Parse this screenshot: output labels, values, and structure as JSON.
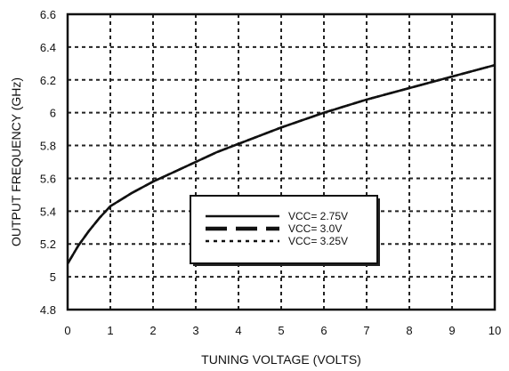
{
  "chart_data": {
    "type": "line",
    "xlabel": "TUNING VOLTAGE (VOLTS)",
    "ylabel": "OUTPUT FREQUENCY (GHz)",
    "xlim": [
      0,
      10
    ],
    "ylim": [
      4.8,
      6.6
    ],
    "x_ticks": [
      "0",
      "1",
      "2",
      "3",
      "4",
      "5",
      "6",
      "7",
      "8",
      "9",
      "10"
    ],
    "y_ticks": [
      "4.8",
      "5",
      "5.2",
      "5.4",
      "5.6",
      "5.8",
      "6",
      "6.2",
      "6.4",
      "6.6"
    ],
    "grid": true,
    "legend_position": "lower-right",
    "series": [
      {
        "name": "VCC= 2.75V",
        "style": "solid",
        "x": [
          0,
          0.25,
          0.5,
          0.75,
          1,
          1.5,
          2,
          2.5,
          3,
          3.5,
          4,
          5,
          6,
          7,
          8,
          9,
          10
        ],
        "y": [
          5.08,
          5.19,
          5.28,
          5.36,
          5.43,
          5.51,
          5.58,
          5.64,
          5.7,
          5.76,
          5.81,
          5.91,
          6.0,
          6.08,
          6.15,
          6.22,
          6.29
        ]
      },
      {
        "name": "VCC= 3.0V",
        "style": "dashed",
        "x": [
          0,
          0.25,
          0.5,
          0.75,
          1,
          1.5,
          2,
          2.5,
          3,
          3.5,
          4,
          5,
          6,
          7,
          8,
          9,
          10
        ],
        "y": [
          5.08,
          5.19,
          5.28,
          5.36,
          5.43,
          5.51,
          5.58,
          5.64,
          5.7,
          5.76,
          5.81,
          5.91,
          6.0,
          6.08,
          6.15,
          6.22,
          6.29
        ]
      },
      {
        "name": "VCC= 3.25V",
        "style": "dotted",
        "x": [
          0,
          0.25,
          0.5,
          0.75,
          1,
          1.5,
          2,
          2.5,
          3,
          3.5,
          4,
          5,
          6,
          7,
          8,
          9,
          10
        ],
        "y": [
          5.08,
          5.19,
          5.28,
          5.36,
          5.43,
          5.51,
          5.58,
          5.64,
          5.7,
          5.76,
          5.81,
          5.91,
          6.0,
          6.08,
          6.15,
          6.22,
          6.29
        ]
      }
    ],
    "legend": [
      {
        "text": "VCC= 2.75V",
        "style": "solid"
      },
      {
        "text": "VCC= 3.0V",
        "style": "dashed"
      },
      {
        "text": "VCC= 3.25V",
        "style": "dotted"
      }
    ],
    "colors": {
      "line": "#111111",
      "grid": "#222222",
      "frame": "#111111",
      "background": "#ffffff"
    }
  }
}
